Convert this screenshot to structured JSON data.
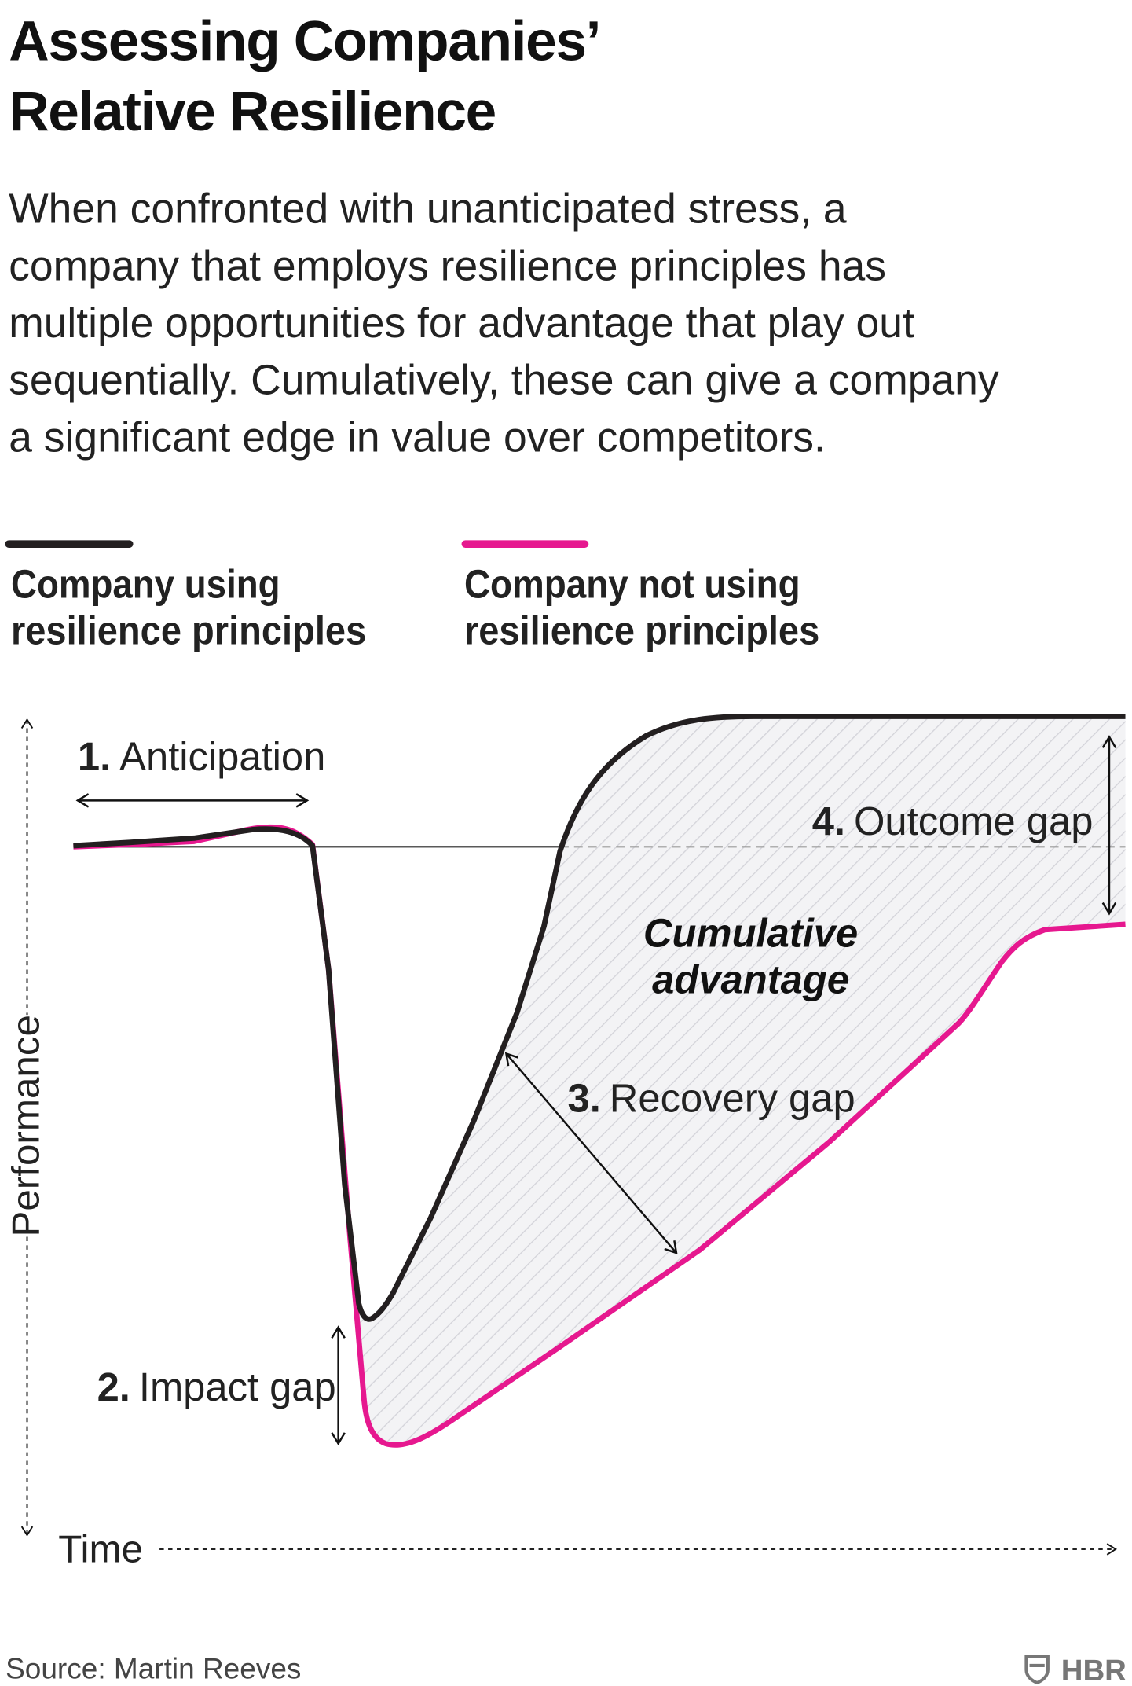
{
  "header": {
    "title_lines": [
      "Assessing Companies’",
      "Relative Resilience"
    ],
    "description_lines": [
      "When confronted with unanticipated stress, a",
      "company that employs resilience principles has",
      "multiple opportunities for advantage that play out",
      "sequentially. Cumulatively, these can give a company",
      "a significant edge in value over competitors."
    ]
  },
  "legend": [
    {
      "label_lines": [
        "Company using",
        "resilience principles"
      ]
    },
    {
      "label_lines": [
        "Company not using",
        "resilience principles"
      ]
    }
  ],
  "annotations": {
    "anticipation": {
      "number": "1.",
      "text": "Anticipation"
    },
    "impact_gap": {
      "number": "2.",
      "text": "Impact gap"
    },
    "recovery_gap": {
      "number": "3.",
      "text": "Recovery gap"
    },
    "outcome_gap": {
      "number": "4.",
      "text": "Outcome gap"
    },
    "cumulative_lines": [
      "Cumulative",
      "advantage"
    ]
  },
  "axes": {
    "y_label": "Performance",
    "x_label": "Time"
  },
  "footer": {
    "source": "Source: Martin Reeves",
    "logo": "HBR"
  }
}
